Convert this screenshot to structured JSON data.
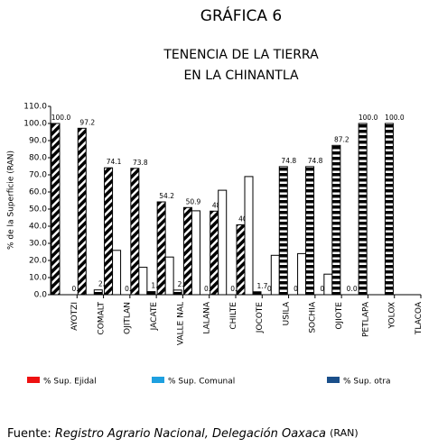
{
  "chart_data": {
    "type": "bar",
    "title": "GRÁFICA 6",
    "subtitle": [
      "TENENCIA DE LA TIERRA",
      "EN LA CHINANTLA"
    ],
    "y_label": "% de la Superficie (RAN)",
    "categories": [
      "AYOTZI",
      "COMALT",
      "OJITLAN",
      "JACATE",
      "VALLE NAL",
      "LALANA",
      "CHILTE",
      "JOCOTE",
      "USILA",
      "SOCHIA",
      "OJIOTE",
      "PETLAPA",
      "YOLOX",
      "TLACOA"
    ],
    "series": [
      {
        "name": "% Sup. Ejidal",
        "color": "#ee1111",
        "pattern": "diagonal",
        "values": [
          100,
          97.2,
          74.1,
          73.8,
          54.2,
          50.9,
          48.8,
          40.8,
          0,
          0,
          0,
          0,
          0,
          0
        ],
        "value_labels": [
          "100.0",
          "97.2",
          "74.1",
          "73.8",
          "54.2",
          "50.9",
          "48.8",
          "40.8",
          "0.0",
          "0.0",
          "0.0",
          "0.0",
          null,
          null
        ]
      },
      {
        "name": "% Sup. Comunal",
        "color": "#1ea0e0",
        "pattern": "outline",
        "values": [
          0,
          0,
          25.9,
          16,
          22,
          49,
          61,
          69,
          23,
          24,
          12,
          0,
          0,
          0
        ],
        "value_labels": [
          null,
          null,
          null,
          null,
          null,
          null,
          null,
          null,
          null,
          null,
          null,
          null,
          null,
          null
        ]
      },
      {
        "name": "% Sup. otra",
        "color": "#1a4f8a",
        "pattern": "stripes",
        "values": [
          0,
          2.8,
          0,
          1.8,
          2.7,
          0,
          0,
          1.7,
          74.8,
          74.8,
          87.2,
          100,
          100,
          0
        ],
        "value_labels": [
          "0.0",
          "2.8",
          "0.0",
          "1.8",
          "2.7",
          "0.0",
          "0.0",
          "1.7",
          "74.8",
          "74.8",
          "87.2",
          "100.0",
          "100.0",
          null
        ]
      }
    ],
    "ylim": [
      0,
      110
    ],
    "yticks": [
      {
        "value": 0,
        "label": "0.0"
      },
      {
        "value": 10,
        "label": "10.0"
      },
      {
        "value": 20,
        "label": "20.0"
      },
      {
        "value": 30,
        "label": "30.0"
      },
      {
        "value": 40,
        "label": "40.0"
      },
      {
        "value": 50,
        "label": "50.0"
      },
      {
        "value": 60,
        "label": "60.0"
      },
      {
        "value": 70,
        "label": "70.0"
      },
      {
        "value": 80,
        "label": "80.0"
      },
      {
        "value": 90,
        "label": "90.0"
      },
      {
        "value": 100,
        "label": "100.0"
      },
      {
        "value": 110,
        "label": "110.0"
      }
    ],
    "grid": false,
    "source": {
      "prefix": "Fuente:",
      "text": "Registro Agrario Nacional, Delegación Oaxaca",
      "suffix": "(RAN)"
    }
  }
}
